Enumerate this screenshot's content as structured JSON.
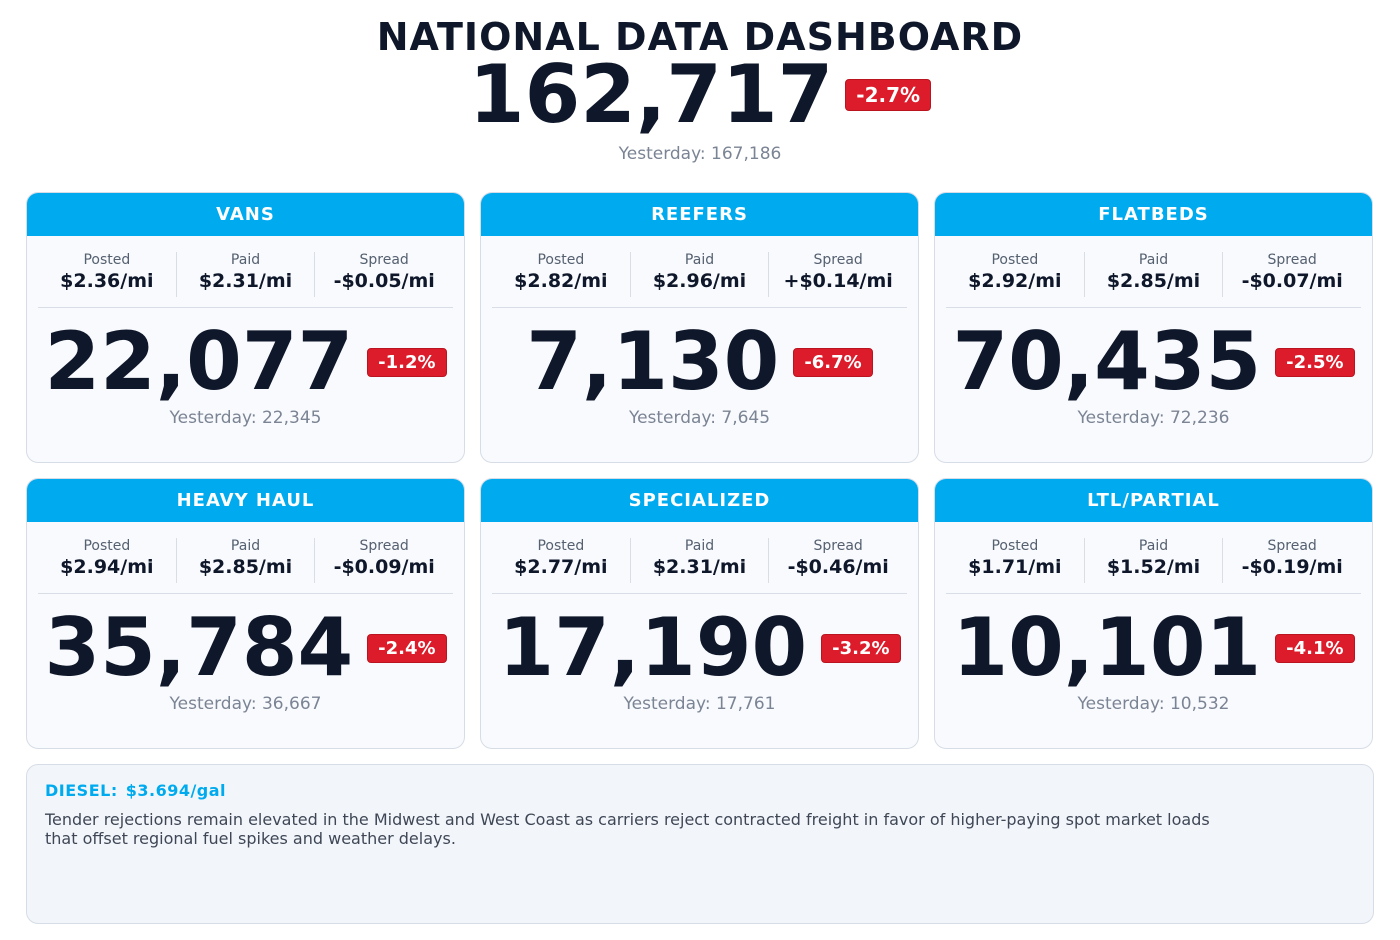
{
  "header": {
    "title": "NATIONAL DATA DASHBOARD",
    "total_value": "162,717",
    "total_change": "-2.7%",
    "total_yesterday": "Yesterday: 167,186"
  },
  "rate_labels": {
    "posted": "Posted",
    "paid": "Paid",
    "spread": "Spread"
  },
  "cards": [
    {
      "name": "VANS",
      "posted": "$2.36/mi",
      "paid": "$2.31/mi",
      "spread": "-$0.05/mi",
      "value": "22,077",
      "change": "-1.2%",
      "yesterday": "Yesterday: 22,345"
    },
    {
      "name": "REEFERS",
      "posted": "$2.82/mi",
      "paid": "$2.96/mi",
      "spread": "+$0.14/mi",
      "value": "7,130",
      "change": "-6.7%",
      "yesterday": "Yesterday: 7,645"
    },
    {
      "name": "FLATBEDS",
      "posted": "$2.92/mi",
      "paid": "$2.85/mi",
      "spread": "-$0.07/mi",
      "value": "70,435",
      "change": "-2.5%",
      "yesterday": "Yesterday: 72,236"
    },
    {
      "name": "HEAVY HAUL",
      "posted": "$2.94/mi",
      "paid": "$2.85/mi",
      "spread": "-$0.09/mi",
      "value": "35,784",
      "change": "-2.4%",
      "yesterday": "Yesterday: 36,667"
    },
    {
      "name": "SPECIALIZED",
      "posted": "$2.77/mi",
      "paid": "$2.31/mi",
      "spread": "-$0.46/mi",
      "value": "17,190",
      "change": "-3.2%",
      "yesterday": "Yesterday: 17,761"
    },
    {
      "name": "LTL/PARTIAL",
      "posted": "$1.71/mi",
      "paid": "$1.52/mi",
      "spread": "-$0.19/mi",
      "value": "10,101",
      "change": "-4.1%",
      "yesterday": "Yesterday: 10,532"
    }
  ],
  "notes": {
    "diesel_label": "DIESEL:",
    "diesel_value": "$3.694/gal",
    "text": "Tender rejections remain elevated in the Midwest and West Coast as carriers reject contracted freight in favor of higher-paying spot market loads that offset regional fuel spikes and weather delays."
  },
  "colors": {
    "accent": "#00aaee",
    "negative_badge": "#dc1c2b",
    "text_dark": "#0f172a",
    "text_muted": "#7b8494"
  }
}
